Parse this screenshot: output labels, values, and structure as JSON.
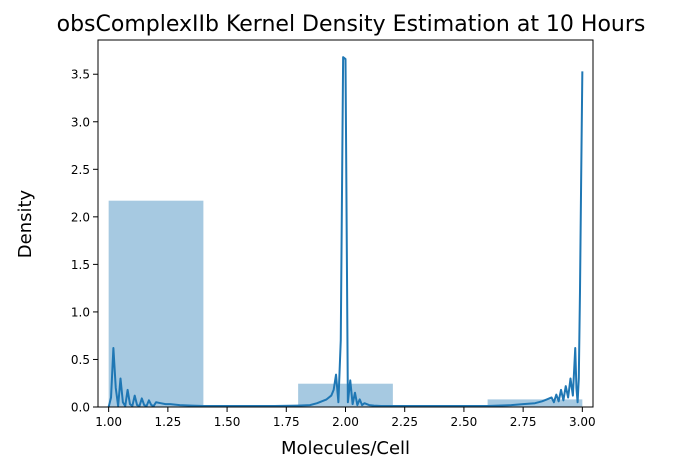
{
  "chart_data": {
    "type": "bar+line",
    "title": "obsComplexIIb Kernel Density Estimation at 10 Hours",
    "xlabel": "Molecules/Cell",
    "ylabel": "Density",
    "xlim": [
      0.955,
      3.045
    ],
    "ylim": [
      0.0,
      3.86
    ],
    "xticks": [
      "1.00",
      "1.25",
      "1.50",
      "1.75",
      "2.00",
      "2.25",
      "2.50",
      "2.75",
      "3.00"
    ],
    "yticks": [
      "0.0",
      "0.5",
      "1.0",
      "1.5",
      "2.0",
      "2.5",
      "3.0",
      "3.5"
    ],
    "grid": false,
    "colors": {
      "histogram": "#a6c9e1",
      "kde": "#1f77b4"
    },
    "histogram": [
      {
        "x0": 1.0,
        "x1": 1.4,
        "density": 2.17
      },
      {
        "x0": 1.4,
        "x1": 1.8,
        "density": 0.0
      },
      {
        "x0": 1.8,
        "x1": 2.2,
        "density": 0.245
      },
      {
        "x0": 2.2,
        "x1": 2.6,
        "density": 0.0
      },
      {
        "x0": 2.6,
        "x1": 3.0,
        "density": 0.08
      }
    ],
    "kde": {
      "x": [
        1.0,
        1.01,
        1.02,
        1.03,
        1.04,
        1.05,
        1.06,
        1.07,
        1.08,
        1.09,
        1.1,
        1.11,
        1.12,
        1.13,
        1.14,
        1.15,
        1.16,
        1.17,
        1.18,
        1.19,
        1.2,
        1.22,
        1.24,
        1.26,
        1.28,
        1.3,
        1.35,
        1.4,
        1.5,
        1.6,
        1.7,
        1.8,
        1.85,
        1.88,
        1.9,
        1.92,
        1.94,
        1.95,
        1.96,
        1.97,
        1.98,
        1.99,
        2.0,
        2.01,
        2.02,
        2.03,
        2.04,
        2.05,
        2.06,
        2.07,
        2.08,
        2.1,
        2.12,
        2.15,
        2.2,
        2.3,
        2.4,
        2.5,
        2.6,
        2.7,
        2.75,
        2.8,
        2.83,
        2.85,
        2.87,
        2.88,
        2.89,
        2.9,
        2.91,
        2.92,
        2.93,
        2.94,
        2.95,
        2.96,
        2.97,
        2.975,
        2.98,
        2.985,
        2.99,
        2.995,
        3.0
      ],
      "y": [
        0.0,
        0.1,
        0.62,
        0.2,
        0.01,
        0.3,
        0.05,
        0.01,
        0.18,
        0.03,
        0.01,
        0.12,
        0.02,
        0.01,
        0.09,
        0.02,
        0.01,
        0.07,
        0.02,
        0.01,
        0.05,
        0.04,
        0.03,
        0.03,
        0.025,
        0.02,
        0.015,
        0.01,
        0.01,
        0.01,
        0.01,
        0.015,
        0.02,
        0.04,
        0.06,
        0.08,
        0.12,
        0.18,
        0.34,
        0.05,
        0.7,
        3.68,
        3.66,
        0.05,
        0.28,
        0.03,
        0.15,
        0.02,
        0.08,
        0.02,
        0.04,
        0.02,
        0.015,
        0.01,
        0.01,
        0.01,
        0.01,
        0.01,
        0.01,
        0.02,
        0.03,
        0.04,
        0.06,
        0.08,
        0.1,
        0.05,
        0.13,
        0.06,
        0.18,
        0.07,
        0.22,
        0.1,
        0.3,
        0.12,
        0.62,
        0.2,
        0.05,
        0.3,
        1.2,
        2.4,
        3.53
      ]
    }
  }
}
